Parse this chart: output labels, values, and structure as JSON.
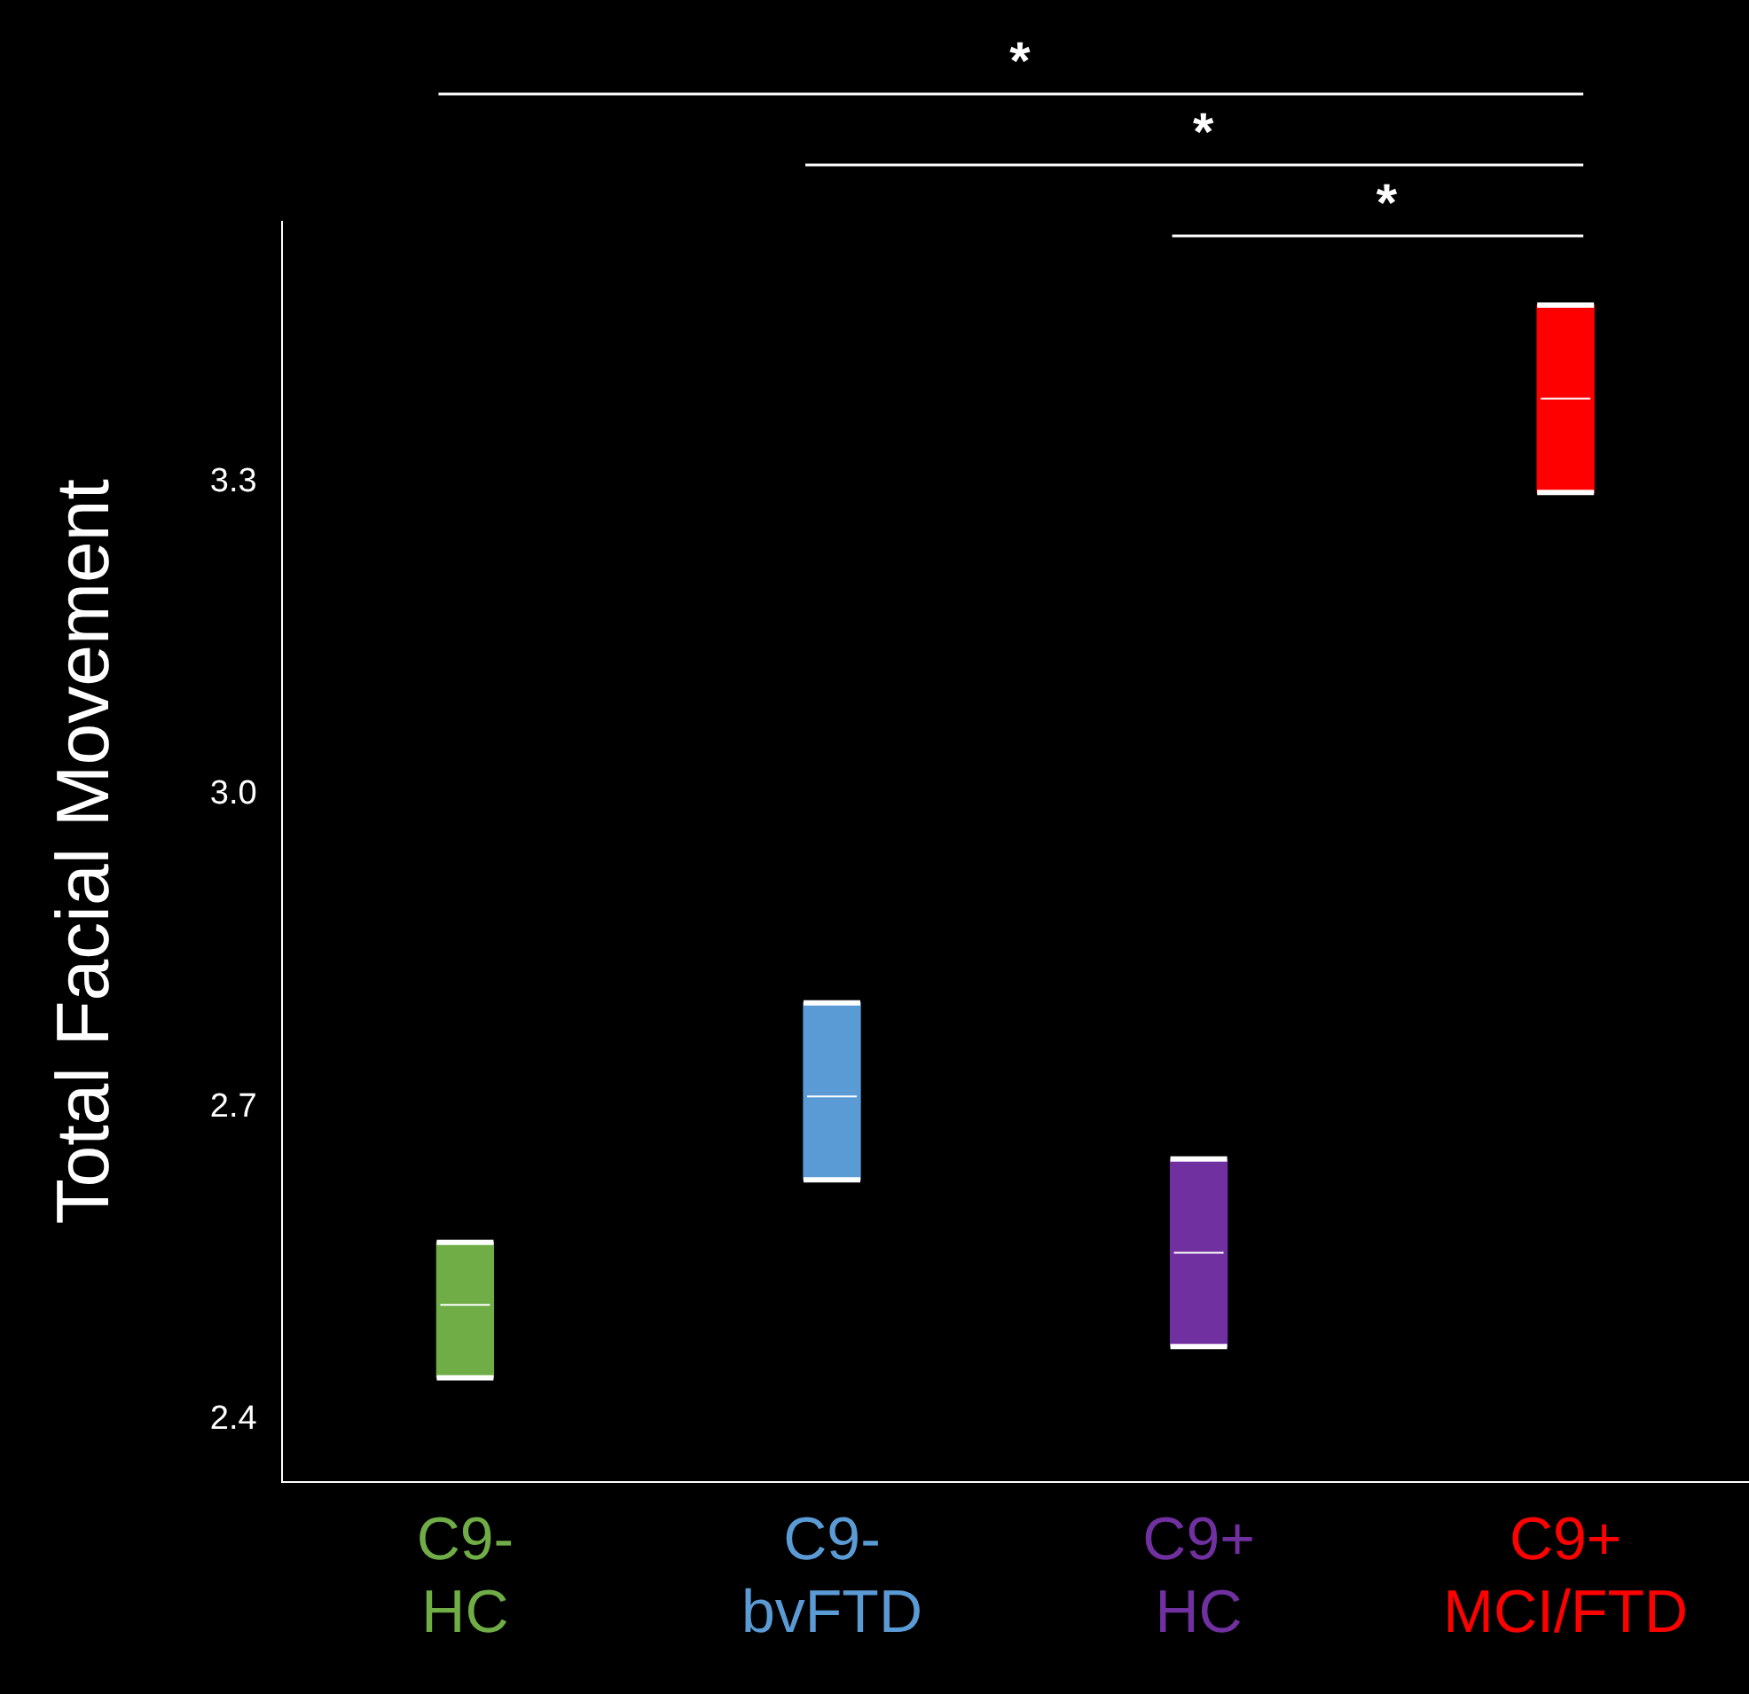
{
  "chart_data": {
    "type": "box",
    "ylabel": "Total Facial Movement",
    "categories": [
      "C9-\nHC",
      "C9-\nbvFTD",
      "C9+\nHC",
      "C9+\nMCI/FTD"
    ],
    "colors": [
      "#70ad47",
      "#5b9bd5",
      "#7030a0",
      "#ff0000"
    ],
    "boxes": [
      {
        "low": 2.44,
        "q1": 2.44,
        "median": 2.51,
        "q3": 2.57,
        "high": 2.57
      },
      {
        "low": 2.63,
        "q1": 2.63,
        "median": 2.71,
        "q3": 2.8,
        "high": 2.8
      },
      {
        "low": 2.47,
        "q1": 2.47,
        "median": 2.56,
        "q3": 2.65,
        "high": 2.65
      },
      {
        "low": 3.29,
        "q1": 3.29,
        "median": 3.38,
        "q3": 3.47,
        "high": 3.47
      }
    ],
    "ylim": [
      2.34,
      3.55
    ],
    "yticks": [
      2.4,
      2.7,
      {
        "value": 3,
        "label": "3.0"
      },
      3.3
    ],
    "grid": false,
    "legend": false,
    "annotations": [
      "*",
      "*",
      "*"
    ]
  }
}
